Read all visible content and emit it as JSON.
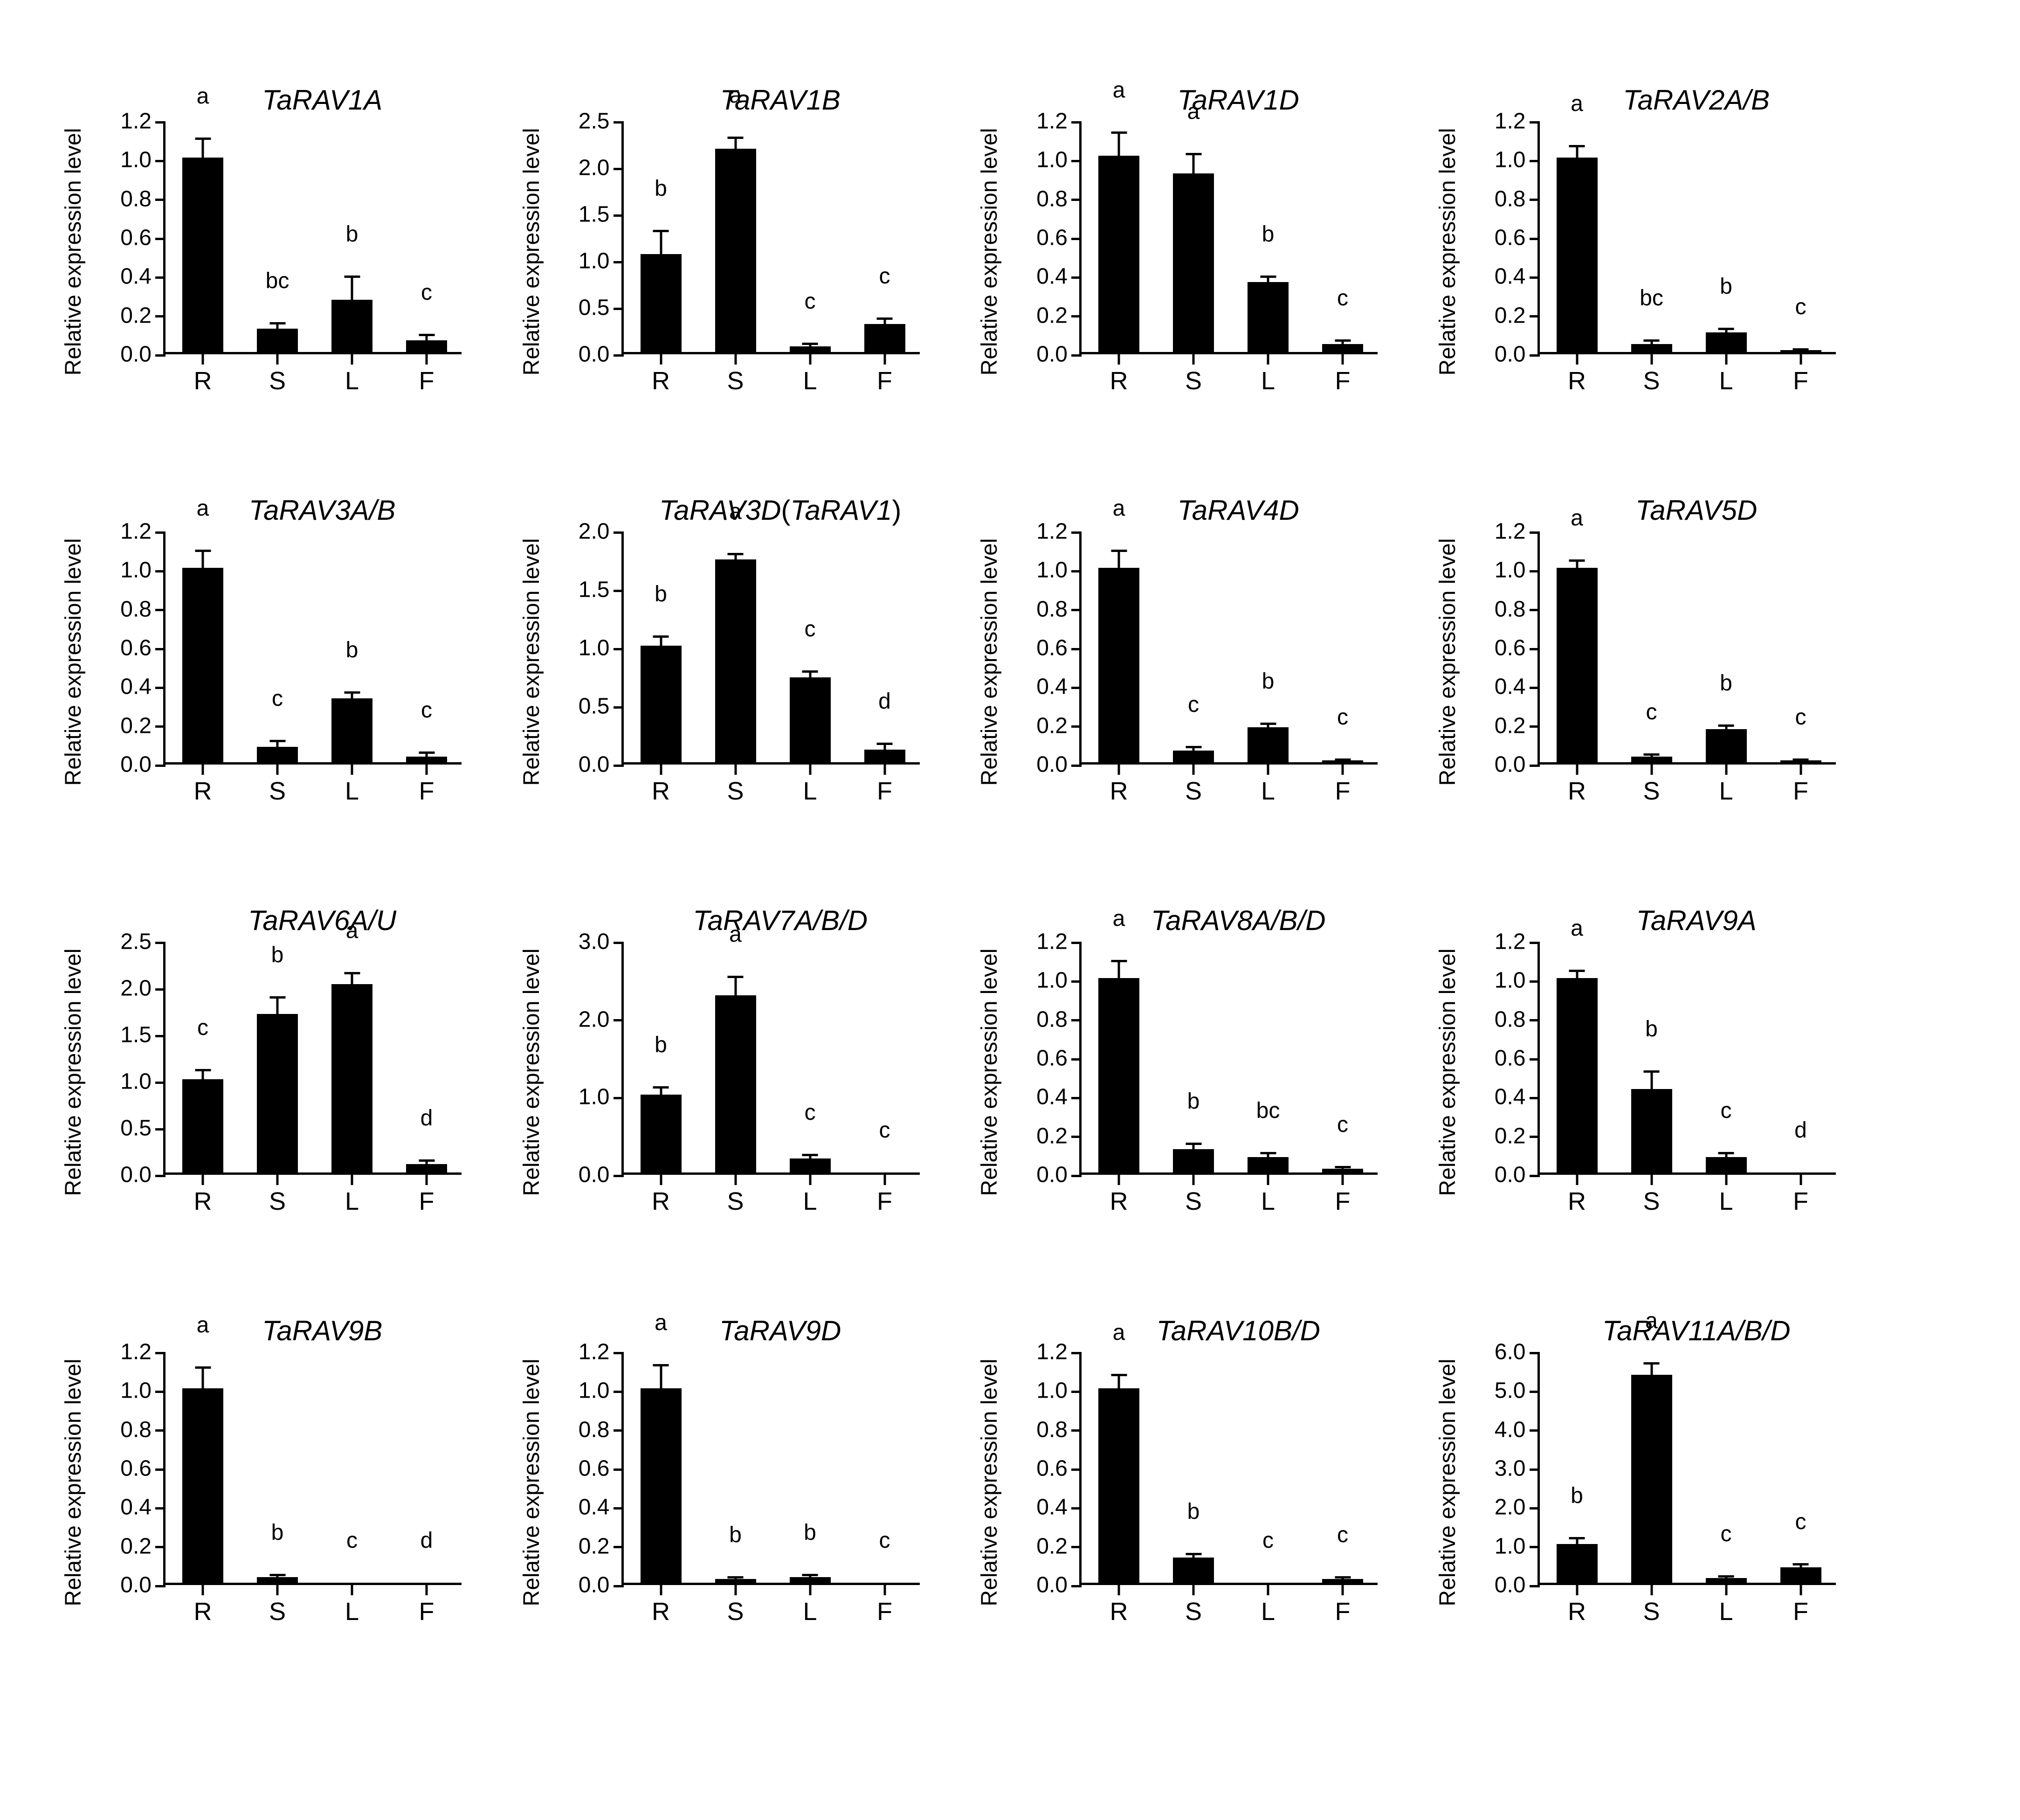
{
  "figure": {
    "background_color": "#ffffff",
    "bar_color": "#000000",
    "axis_color": "#000000",
    "text_color": "#000000",
    "grid_cols": 4,
    "grid_rows": 4,
    "font_family": "Arial",
    "title_fontsize": 60,
    "title_style": "italic",
    "label_fontsize": 48,
    "tick_fontsize": 48,
    "xlabel_fontsize": 54,
    "sig_fontsize": 48,
    "ylabel": "Relative expression level",
    "categories": [
      "R",
      "S",
      "L",
      "F"
    ],
    "bar_rel_width": 0.55,
    "axis_line_width": 5,
    "errorbar_line_width": 5,
    "errorbar_cap_width": 34
  },
  "panels": [
    {
      "title": "TaRAV1A",
      "ylim": [
        0,
        1.2
      ],
      "ytick_step": 0.2,
      "ytick_decimals": 1,
      "values": [
        1.0,
        0.12,
        0.27,
        0.06
      ],
      "errors": [
        0.1,
        0.03,
        0.12,
        0.03
      ],
      "sig": [
        "a",
        "bc",
        "b",
        "c"
      ]
    },
    {
      "title": "TaRAV1B",
      "ylim": [
        0,
        2.5
      ],
      "ytick_step": 0.5,
      "ytick_decimals": 1,
      "values": [
        1.05,
        2.18,
        0.06,
        0.3
      ],
      "errors": [
        0.25,
        0.12,
        0.03,
        0.06
      ],
      "sig": [
        "b",
        "a",
        "c",
        "c"
      ]
    },
    {
      "title": "TaRAV1D",
      "ylim": [
        0,
        1.2
      ],
      "ytick_step": 0.2,
      "ytick_decimals": 1,
      "values": [
        1.01,
        0.92,
        0.36,
        0.04
      ],
      "errors": [
        0.12,
        0.1,
        0.03,
        0.02
      ],
      "sig": [
        "a",
        "a",
        "b",
        "c"
      ]
    },
    {
      "title": "TaRAV2A/B",
      "ylim": [
        0,
        1.2
      ],
      "ytick_step": 0.2,
      "ytick_decimals": 1,
      "values": [
        1.0,
        0.04,
        0.1,
        0.01
      ],
      "errors": [
        0.06,
        0.02,
        0.02,
        0.005
      ],
      "sig": [
        "a",
        "bc",
        "b",
        "c"
      ]
    },
    {
      "title": "TaRAV3A/B",
      "ylim": [
        0,
        1.2
      ],
      "ytick_step": 0.2,
      "ytick_decimals": 1,
      "values": [
        1.0,
        0.08,
        0.33,
        0.03
      ],
      "errors": [
        0.09,
        0.03,
        0.03,
        0.02
      ],
      "sig": [
        "a",
        "c",
        "b",
        "c"
      ]
    },
    {
      "title_main": "TaRAV3D",
      "title_paren": "(",
      "title_sub": "TaRAV1",
      "title_paren_close": ")",
      "ylim": [
        0,
        2.0
      ],
      "ytick_step": 0.5,
      "ytick_decimals": 1,
      "values": [
        1.0,
        1.74,
        0.73,
        0.11
      ],
      "errors": [
        0.08,
        0.05,
        0.05,
        0.05
      ],
      "sig": [
        "b",
        "a",
        "c",
        "d"
      ]
    },
    {
      "title": "TaRAV4D",
      "ylim": [
        0,
        1.2
      ],
      "ytick_step": 0.2,
      "ytick_decimals": 1,
      "values": [
        1.0,
        0.06,
        0.18,
        0.01
      ],
      "errors": [
        0.09,
        0.02,
        0.02,
        0.005
      ],
      "sig": [
        "a",
        "c",
        "b",
        "c"
      ]
    },
    {
      "title": "TaRAV5D",
      "ylim": [
        0,
        1.2
      ],
      "ytick_step": 0.2,
      "ytick_decimals": 1,
      "values": [
        1.0,
        0.03,
        0.17,
        0.01
      ],
      "errors": [
        0.04,
        0.01,
        0.02,
        0.005
      ],
      "sig": [
        "a",
        "c",
        "b",
        "c"
      ]
    },
    {
      "title": "TaRAV6A/U",
      "ylim": [
        0,
        2.5
      ],
      "ytick_step": 0.5,
      "ytick_decimals": 1,
      "values": [
        1.0,
        1.7,
        2.02,
        0.09
      ],
      "errors": [
        0.1,
        0.18,
        0.12,
        0.04
      ],
      "sig": [
        "c",
        "b",
        "a",
        "d"
      ]
    },
    {
      "title": "TaRAV7A/B/D",
      "ylim": [
        0,
        3.0
      ],
      "ytick_step": 1.0,
      "ytick_decimals": 1,
      "values": [
        1.0,
        2.28,
        0.18,
        0.0
      ],
      "errors": [
        0.1,
        0.24,
        0.05,
        0.0
      ],
      "sig": [
        "b",
        "a",
        "c",
        "c"
      ]
    },
    {
      "title": "TaRAV8A/B/D",
      "ylim": [
        0,
        1.2
      ],
      "ytick_step": 0.2,
      "ytick_decimals": 1,
      "values": [
        1.0,
        0.12,
        0.08,
        0.02
      ],
      "errors": [
        0.09,
        0.03,
        0.02,
        0.01
      ],
      "sig": [
        "a",
        "b",
        "bc",
        "c"
      ]
    },
    {
      "title": "TaRAV9A",
      "ylim": [
        0,
        1.2
      ],
      "ytick_step": 0.2,
      "ytick_decimals": 1,
      "values": [
        1.0,
        0.43,
        0.08,
        0.0
      ],
      "errors": [
        0.04,
        0.09,
        0.02,
        0.0
      ],
      "sig": [
        "a",
        "b",
        "c",
        "d"
      ]
    },
    {
      "title": "TaRAV9B",
      "ylim": [
        0,
        1.2
      ],
      "ytick_step": 0.2,
      "ytick_decimals": 1,
      "values": [
        1.0,
        0.03,
        0.0,
        0.0
      ],
      "errors": [
        0.11,
        0.01,
        0.0,
        0.0
      ],
      "sig": [
        "a",
        "b",
        "c",
        "d"
      ]
    },
    {
      "title": "TaRAV9D",
      "ylim": [
        0,
        1.2
      ],
      "ytick_step": 0.2,
      "ytick_decimals": 1,
      "values": [
        1.0,
        0.02,
        0.03,
        0.0
      ],
      "errors": [
        0.12,
        0.01,
        0.01,
        0.0
      ],
      "sig": [
        "a",
        "b",
        "b",
        "c"
      ]
    },
    {
      "title": "TaRAV10B/D",
      "ylim": [
        0,
        1.2
      ],
      "ytick_step": 0.2,
      "ytick_decimals": 1,
      "values": [
        1.0,
        0.13,
        0.0,
        0.02
      ],
      "errors": [
        0.07,
        0.02,
        0.0,
        0.01
      ],
      "sig": [
        "a",
        "b",
        "c",
        "c"
      ]
    },
    {
      "title": "TaRAV11A/B/D",
      "ylim": [
        0,
        6.0
      ],
      "ytick_step": 1.0,
      "ytick_decimals": 1,
      "values": [
        1.0,
        5.35,
        0.12,
        0.4
      ],
      "errors": [
        0.15,
        0.3,
        0.05,
        0.08
      ],
      "sig": [
        "b",
        "a",
        "c",
        "c"
      ]
    }
  ]
}
